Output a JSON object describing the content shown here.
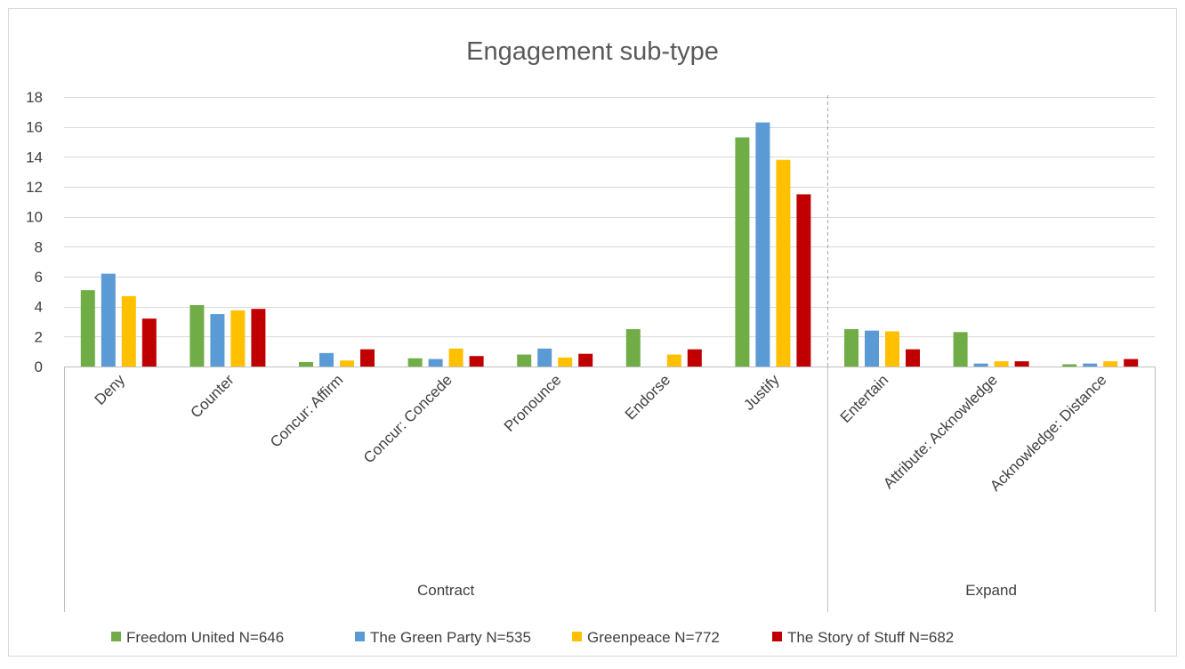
{
  "chart_data": {
    "type": "bar",
    "title": "Engagement sub-type",
    "xlabel": "",
    "ylabel": "",
    "ylim": [
      0,
      18
    ],
    "yticks": [
      0,
      2,
      4,
      6,
      8,
      10,
      12,
      14,
      16,
      18
    ],
    "grid": true,
    "legend_position": "bottom",
    "categories": [
      "Deny",
      "Counter",
      "Concur: Affirm",
      "Concur: Concede",
      "Pronounce",
      "Endorse",
      "Justify",
      "Entertain",
      "Attribute: Acknowledge",
      "Acknowledge: Distance"
    ],
    "groups": [
      {
        "label": "Contract",
        "categories": [
          "Deny",
          "Counter",
          "Concur: Affirm",
          "Concur: Concede",
          "Pronounce",
          "Endorse",
          "Justify"
        ]
      },
      {
        "label": "Expand",
        "categories": [
          "Entertain",
          "Attribute: Acknowledge",
          "Acknowledge: Distance"
        ]
      }
    ],
    "series": [
      {
        "name": "Freedom United N=646",
        "color": "#70ad47",
        "values": [
          5.1,
          4.1,
          0.3,
          0.55,
          0.8,
          2.5,
          15.3,
          2.5,
          2.3,
          0.15
        ]
      },
      {
        "name": "The Green Party N=535",
        "color": "#5b9bd5",
        "values": [
          6.2,
          3.5,
          0.9,
          0.5,
          1.2,
          0,
          16.3,
          2.4,
          0.2,
          0.2
        ]
      },
      {
        "name": "Greenpeace N=772",
        "color": "#ffc000",
        "values": [
          4.7,
          3.75,
          0.4,
          1.2,
          0.6,
          0.8,
          13.8,
          2.35,
          0.35,
          0.35
        ]
      },
      {
        "name": "The Story of Stuff N=682",
        "color": "#c00000",
        "values": [
          3.2,
          3.85,
          1.15,
          0.7,
          0.85,
          1.15,
          11.5,
          1.15,
          0.35,
          0.5
        ]
      }
    ]
  }
}
